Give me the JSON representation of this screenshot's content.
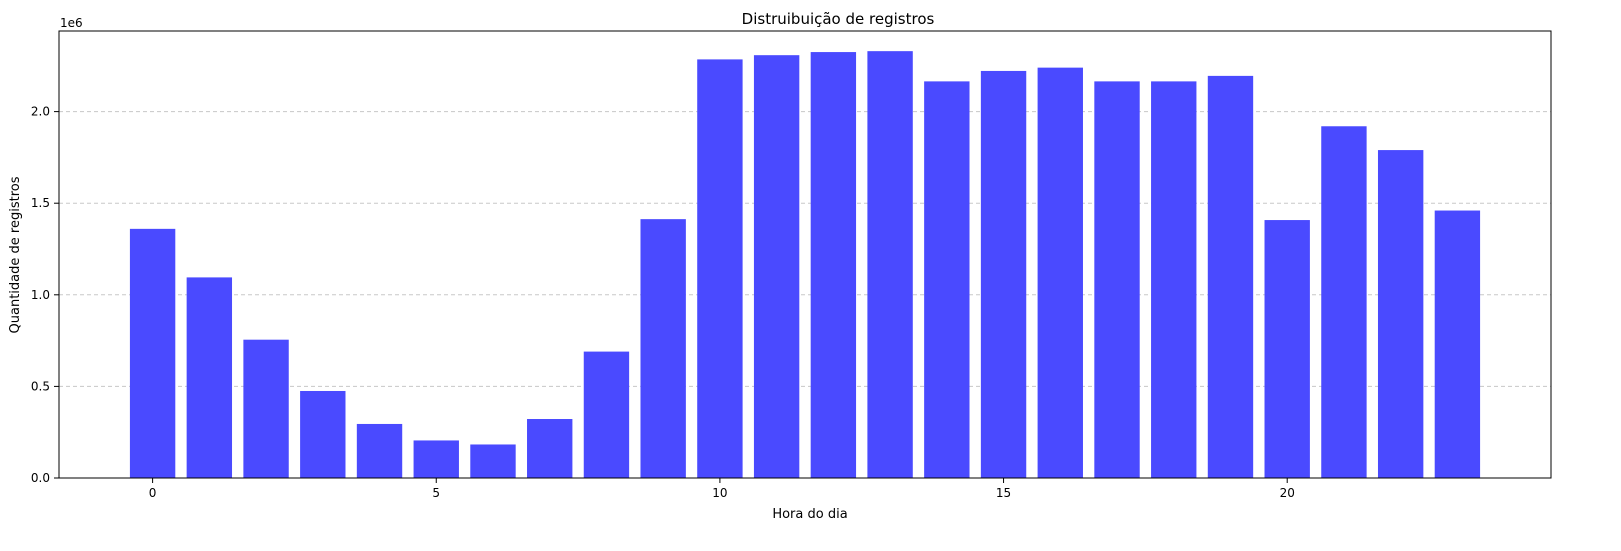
{
  "chart_data": {
    "type": "bar",
    "title": "Distruibuição de registros",
    "xlabel": "Hora do dia",
    "ylabel": "Quantidade de registros",
    "y_offset_label": "1e6",
    "x": [
      0,
      1,
      2,
      3,
      4,
      5,
      6,
      7,
      8,
      9,
      10,
      11,
      12,
      13,
      14,
      15,
      16,
      17,
      18,
      19,
      20,
      21,
      22,
      23
    ],
    "values": [
      1360000,
      1095000,
      755000,
      475000,
      295000,
      205000,
      183000,
      322000,
      690000,
      1413000,
      2285000,
      2308000,
      2325000,
      2330000,
      2165000,
      2222000,
      2240000,
      2165000,
      2165000,
      2195000,
      1408000,
      1920000,
      1790000,
      1460000
    ],
    "xlim": [
      -1.65,
      24.65
    ],
    "ylim": [
      0,
      2440000
    ],
    "x_ticks": [
      0,
      5,
      10,
      15,
      20
    ],
    "x_tick_labels": [
      "0",
      "5",
      "10",
      "15",
      "20"
    ],
    "y_ticks": [
      0,
      500000,
      1000000,
      1500000,
      2000000
    ],
    "y_tick_labels": [
      "0.0",
      "0.5",
      "1.0",
      "1.5",
      "2.0"
    ],
    "grid": "y-dashed",
    "bar_color": "#4a4aff",
    "grid_color": "#c8c8c8"
  }
}
